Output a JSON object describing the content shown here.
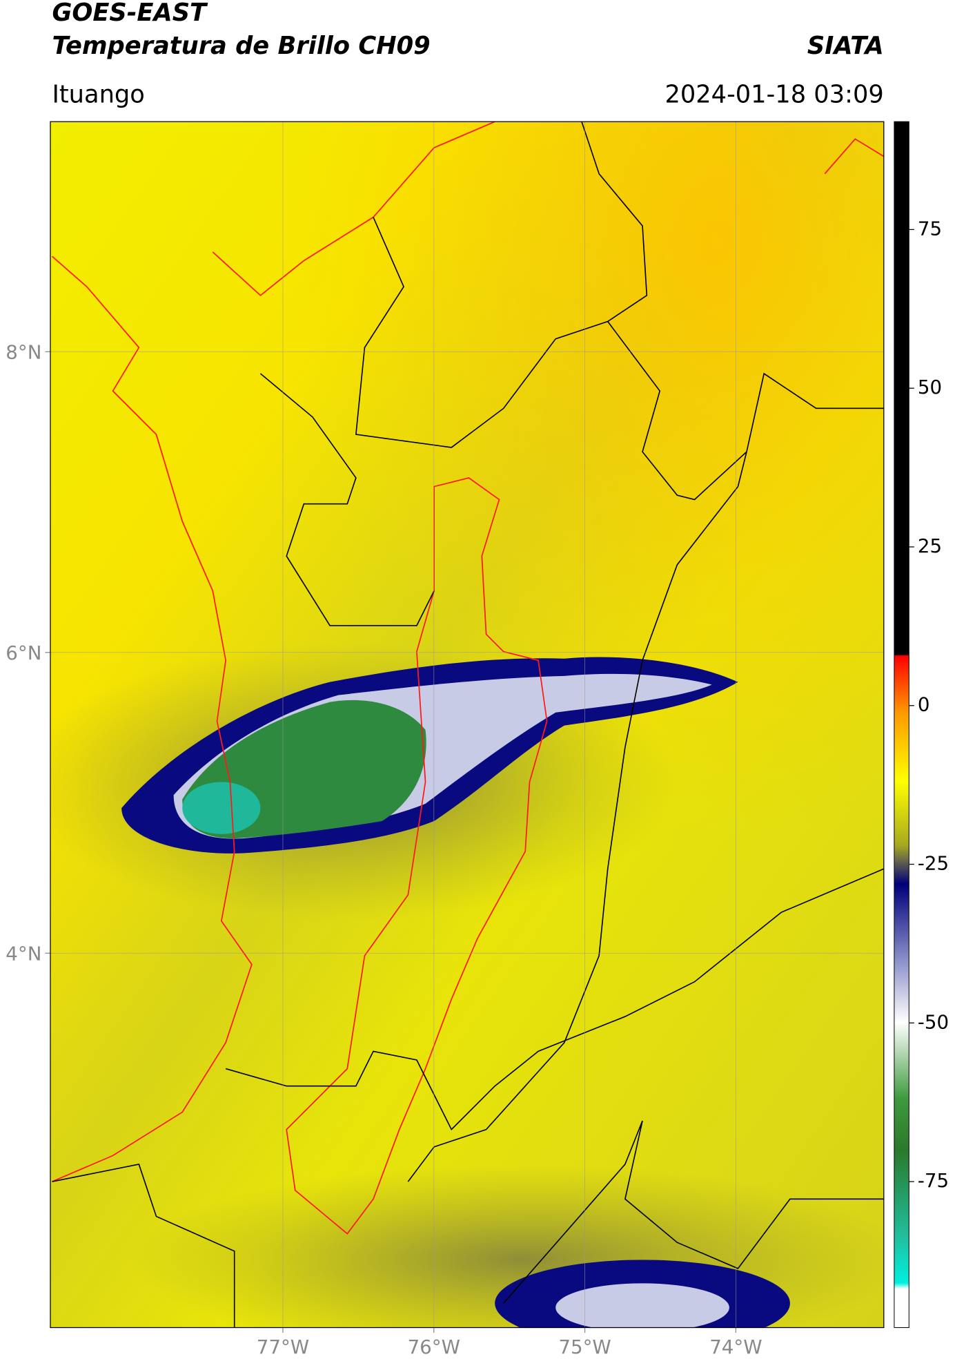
{
  "header": {
    "title": "GOES-EAST",
    "subtitle": "Temperatura de Brillo CH09",
    "organization": "SIATA",
    "location": "Ituango",
    "datetime": "2024-01-18 03:09"
  },
  "map": {
    "xlim": [
      -78.54,
      -73.02
    ],
    "ylim": [
      1.51,
      9.53
    ],
    "xticks": [
      {
        "value": -77,
        "label": "77°W"
      },
      {
        "value": -76,
        "label": "76°W"
      },
      {
        "value": -75,
        "label": "75°W"
      },
      {
        "value": -74,
        "label": "74°W"
      }
    ],
    "yticks": [
      {
        "value": 8,
        "label": "8°N"
      },
      {
        "value": 6,
        "label": "6°N"
      },
      {
        "value": 4,
        "label": "4°N"
      }
    ]
  },
  "colorbar": {
    "lim": [
      -98,
      92
    ],
    "ticks": [
      75,
      50,
      25,
      0,
      -25,
      -50,
      -75
    ]
  }
}
